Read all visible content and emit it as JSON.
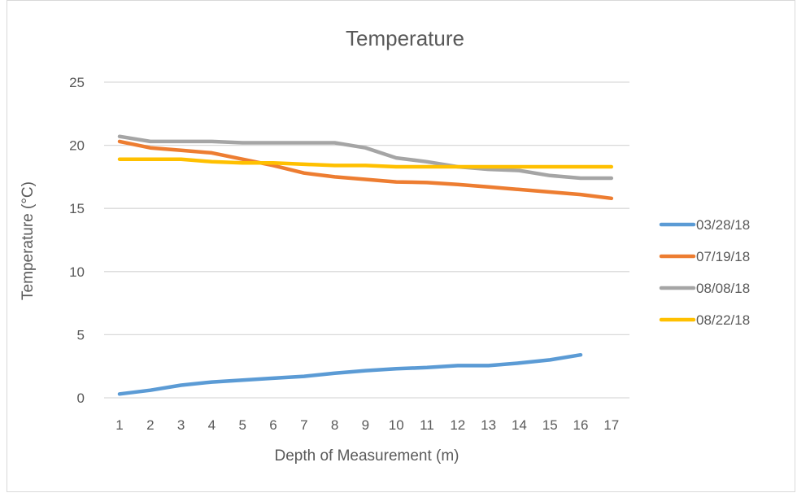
{
  "chart_data": {
    "type": "line",
    "title": "Temperature",
    "xlabel": "Depth of Measurement (m)",
    "ylabel": "Temperature (°C)",
    "categories": [
      "1",
      "2",
      "3",
      "4",
      "5",
      "6",
      "7",
      "8",
      "9",
      "10",
      "11",
      "12",
      "13",
      "14",
      "15",
      "16",
      "17"
    ],
    "ylim": [
      0,
      25
    ],
    "yticks": [
      0,
      5,
      10,
      15,
      20,
      25
    ],
    "grid": true,
    "legend_position": "right",
    "series": [
      {
        "name": "03/28/18",
        "color": "#5b9bd5",
        "values": [
          0.3,
          0.6,
          1.0,
          1.25,
          1.4,
          1.55,
          1.7,
          1.95,
          2.15,
          2.3,
          2.4,
          2.55,
          2.55,
          2.75,
          3.0,
          3.4,
          null
        ]
      },
      {
        "name": "07/19/18",
        "color": "#ed7d31",
        "values": [
          20.3,
          19.8,
          19.6,
          19.4,
          18.9,
          18.4,
          17.8,
          17.5,
          17.3,
          17.1,
          17.05,
          16.9,
          16.7,
          16.5,
          16.3,
          16.1,
          15.8
        ]
      },
      {
        "name": "08/08/18",
        "color": "#a5a5a5",
        "values": [
          20.7,
          20.3,
          20.3,
          20.3,
          20.2,
          20.2,
          20.2,
          20.2,
          19.8,
          19.0,
          18.7,
          18.3,
          18.1,
          18.0,
          17.6,
          17.4,
          17.4
        ]
      },
      {
        "name": "08/22/18",
        "color": "#ffc000",
        "values": [
          18.9,
          18.9,
          18.9,
          18.7,
          18.6,
          18.6,
          18.5,
          18.4,
          18.4,
          18.3,
          18.3,
          18.3,
          18.3,
          18.3,
          18.3,
          18.3,
          18.3
        ]
      }
    ]
  }
}
